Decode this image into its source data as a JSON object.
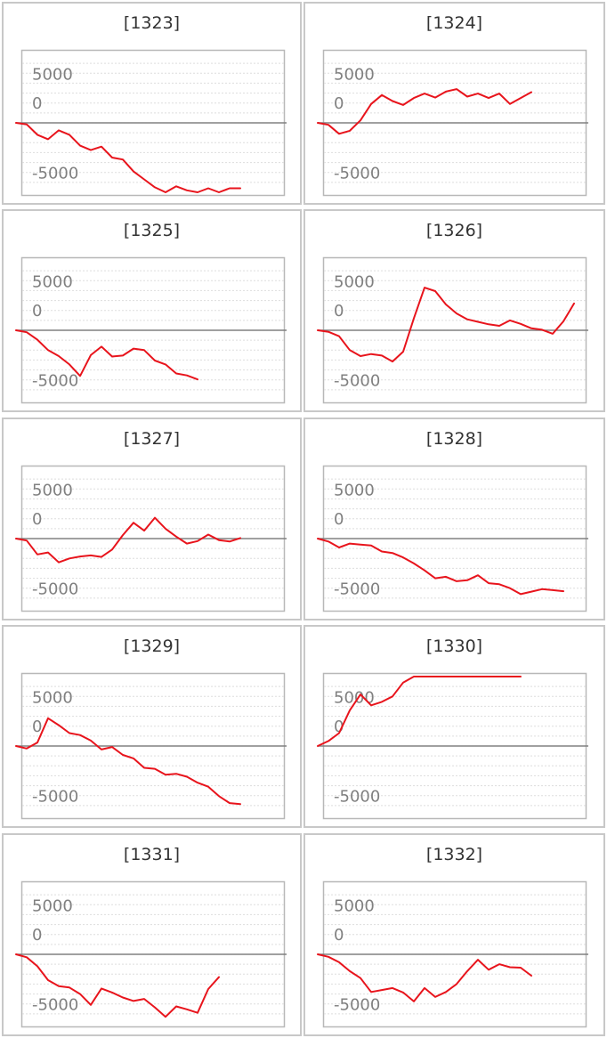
{
  "colors": {
    "line": "#e8141c",
    "zero_line": "#808080",
    "grid": "#dddddd",
    "frame": "#b8b8b8",
    "tick_text": "#808080"
  },
  "chart_data": [
    {
      "type": "line",
      "title": "[1323]",
      "ylim": [
        -7000,
        7000
      ],
      "yticks": [
        "5000",
        "0",
        "-5000"
      ],
      "values": [
        0,
        -150,
        -1200,
        -1650,
        -750,
        -1200,
        -2300,
        -2750,
        -2400,
        -3500,
        -3700,
        -4900,
        -5700,
        -6500,
        -7100,
        -6400,
        -6800,
        -7250,
        -6600,
        -7250,
        -6600,
        -6600
      ]
    },
    {
      "type": "line",
      "title": "[1324]",
      "ylim": [
        -7000,
        7000
      ],
      "yticks": [
        "5000",
        "0",
        "-5000"
      ],
      "values": [
        0,
        -200,
        -1100,
        -800,
        250,
        1900,
        2800,
        2200,
        1800,
        2500,
        2950,
        2550,
        3150,
        3400,
        2650,
        2950,
        2500,
        2950,
        1900,
        2500,
        3100
      ]
    },
    {
      "type": "line",
      "title": "[1325]",
      "ylim": [
        -7000,
        7000
      ],
      "yticks": [
        "5000",
        "0",
        "-5000"
      ],
      "values": [
        0,
        -200,
        -950,
        -2000,
        -2600,
        -3450,
        -4600,
        -2500,
        -1650,
        -2650,
        -2550,
        -1850,
        -2000,
        -3050,
        -3450,
        -4350,
        -4550,
        -4950
      ]
    },
    {
      "type": "line",
      "title": "[1326]",
      "ylim": [
        -7000,
        7000
      ],
      "yticks": [
        "5000",
        "0",
        "-5000"
      ],
      "values": [
        0,
        -150,
        -600,
        -2000,
        -2600,
        -2400,
        -2550,
        -3150,
        -2150,
        1200,
        4300,
        3950,
        2600,
        1700,
        1100,
        850,
        600,
        450,
        1000,
        650,
        200,
        50,
        -350,
        900,
        2700
      ]
    },
    {
      "type": "line",
      "title": "[1327]",
      "ylim": [
        -7000,
        7000
      ],
      "yticks": [
        "5000",
        "0",
        "-5000"
      ],
      "values": [
        0,
        -200,
        -1600,
        -1400,
        -2400,
        -2000,
        -1800,
        -1700,
        -1850,
        -1100,
        350,
        1600,
        800,
        2100,
        1000,
        200,
        -500,
        -250,
        400,
        -150,
        -300,
        50
      ]
    },
    {
      "type": "line",
      "title": "[1328]",
      "ylim": [
        -7000,
        7000
      ],
      "yticks": [
        "5000",
        "0",
        "-5000"
      ],
      "values": [
        0,
        -300,
        -900,
        -500,
        -600,
        -700,
        -1300,
        -1450,
        -1900,
        -2500,
        -3200,
        -4000,
        -3850,
        -4300,
        -4200,
        -3700,
        -4500,
        -4600,
        -5000,
        -5600,
        -5350,
        -5100,
        -5200,
        -5300
      ]
    },
    {
      "type": "line",
      "title": "[1329]",
      "ylim": [
        -7000,
        7000
      ],
      "yticks": [
        "5000",
        "0",
        "-5000"
      ],
      "values": [
        0,
        -250,
        350,
        2800,
        2100,
        1300,
        1100,
        550,
        -350,
        -100,
        -900,
        -1250,
        -2200,
        -2300,
        -2900,
        -2800,
        -3100,
        -3700,
        -4100,
        -5050,
        -5750,
        -5850
      ]
    },
    {
      "type": "line",
      "title": "[1330]",
      "ylim": [
        -7000,
        7000
      ],
      "yticks": [
        "5000",
        "0",
        "-5000"
      ],
      "values": [
        0,
        500,
        1300,
        3600,
        5200,
        4100,
        4450,
        5000,
        6400,
        7000,
        7000,
        7000,
        7000,
        7000,
        7000,
        7000,
        7000,
        7000,
        7000,
        7000
      ]
    },
    {
      "type": "line",
      "title": "[1331]",
      "ylim": [
        -7000,
        7000
      ],
      "yticks": [
        "5000",
        "0",
        "-5000"
      ],
      "values": [
        0,
        -300,
        -1200,
        -2600,
        -3200,
        -3350,
        -4000,
        -5100,
        -3450,
        -3850,
        -4350,
        -4700,
        -4500,
        -5350,
        -6300,
        -5250,
        -5550,
        -5900,
        -3500,
        -2300
      ]
    },
    {
      "type": "line",
      "title": "[1332]",
      "ylim": [
        -7000,
        7000
      ],
      "yticks": [
        "5000",
        "0",
        "-5000"
      ],
      "values": [
        0,
        -250,
        -800,
        -1700,
        -2400,
        -3800,
        -3600,
        -3400,
        -3850,
        -4750,
        -3400,
        -4300,
        -3800,
        -3000,
        -1700,
        -550,
        -1550,
        -1000,
        -1300,
        -1350,
        -2150
      ]
    }
  ]
}
